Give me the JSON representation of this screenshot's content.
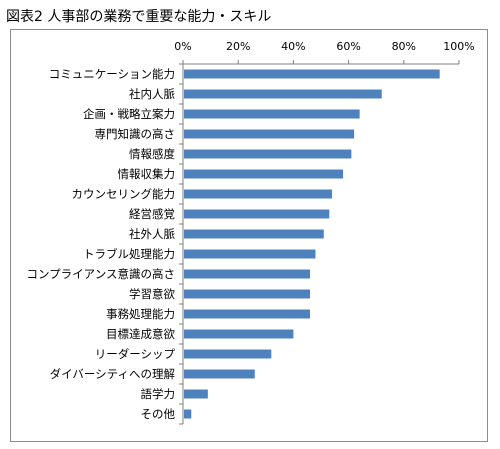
{
  "chart_data": {
    "type": "bar",
    "orientation": "horizontal",
    "title": "図表2 人事部の業務で重要な能力・スキル",
    "categories": [
      "コミュニケーション能力",
      "社内人脈",
      "企画・戦略立案力",
      "専門知識の高さ",
      "情報感度",
      "情報収集力",
      "カウンセリング能力",
      "経営感覚",
      "社外人脈",
      "トラブル処理能力",
      "コンプライアンス意識の高さ",
      "学習意欲",
      "事務処理能力",
      "目標達成意欲",
      "リーダーシップ",
      "ダイバーシティへの理解",
      "語学力",
      "その他"
    ],
    "values": [
      93,
      72,
      64,
      62,
      61,
      58,
      54,
      53,
      51,
      48,
      46,
      46,
      46,
      40,
      32,
      26,
      9,
      3
    ],
    "xlim": [
      0,
      100
    ],
    "xticks": [
      "0%",
      "20%",
      "40%",
      "60%",
      "80%",
      "100%"
    ],
    "xaxis_position": "top",
    "bar_color": "#4f81bd",
    "gridlines": false,
    "legend": "none"
  }
}
